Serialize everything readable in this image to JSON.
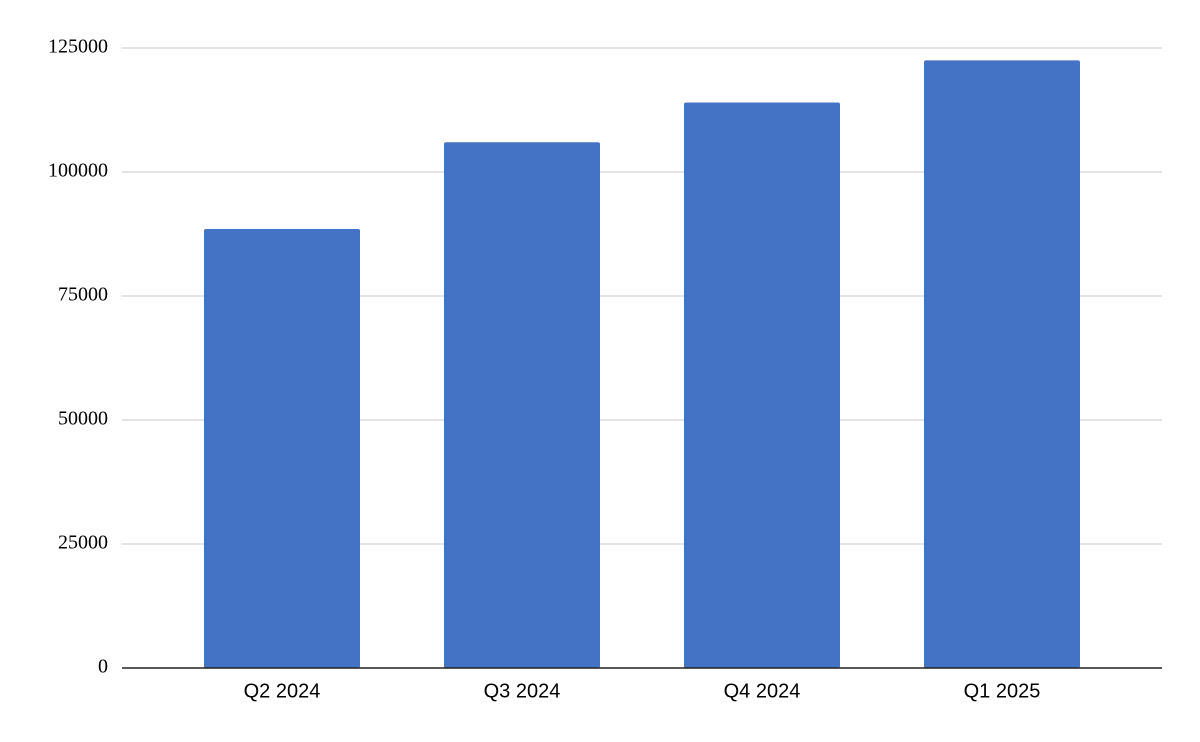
{
  "chart_data": {
    "type": "bar",
    "categories": [
      "Q2 2024",
      "Q3 2024",
      "Q4 2024",
      "Q1 2025"
    ],
    "values": [
      88500,
      106000,
      114000,
      122500
    ],
    "color": "#4472c4",
    "ylim": [
      0,
      125000
    ],
    "yticks": [
      0,
      25000,
      50000,
      75000,
      100000,
      125000
    ],
    "grid": true
  }
}
